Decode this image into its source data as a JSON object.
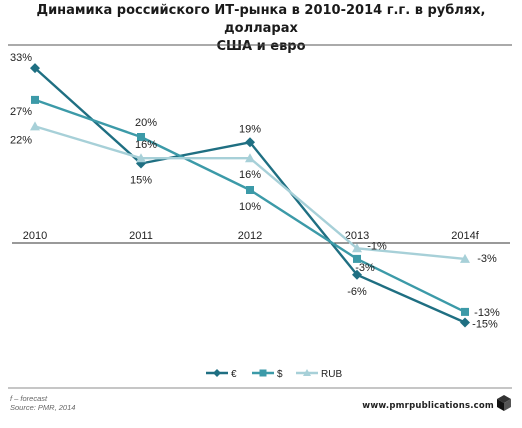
{
  "chart_data": {
    "type": "line",
    "title_lines": [
      "Динамика российского ИТ-рынка в 2010-2014 г.г. в рублях, долларах",
      "США и евро"
    ],
    "categories": [
      "2010",
      "2011",
      "2012",
      "2013",
      "2014f"
    ],
    "ylim": [
      -18,
      36
    ],
    "series": [
      {
        "name": "€",
        "marker": "diamond",
        "color": "#1f6f82",
        "values": [
          33,
          15,
          19,
          -6,
          -15
        ],
        "labels": [
          "33%",
          "15%",
          "19%",
          "-6%",
          "-15%"
        ]
      },
      {
        "name": "$",
        "marker": "square",
        "color": "#3c9aa8",
        "values": [
          27,
          20,
          10,
          -3,
          -13
        ],
        "labels": [
          "27%",
          "20%",
          "10%",
          "-3%",
          "-13%"
        ]
      },
      {
        "name": "RUB",
        "marker": "triangle",
        "color": "#a7d0d8",
        "values": [
          22,
          16,
          16,
          -1,
          -3
        ],
        "labels": [
          "22%",
          "16%",
          "16%",
          "-1%",
          "-3%"
        ]
      }
    ],
    "legend": "bottom-center",
    "grid": false
  },
  "footnote": {
    "forecast": "f – forecast",
    "source": "Source: PMR, 2014"
  },
  "brand": "www.pmrpublications.com"
}
